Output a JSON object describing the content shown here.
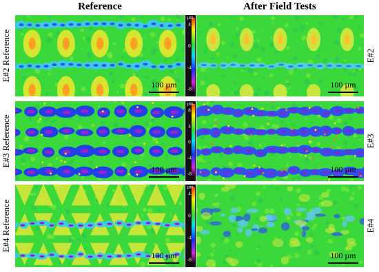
{
  "columns": [
    "Reference",
    "After Field Tests"
  ],
  "rows": [
    {
      "label": "E#2 Reference",
      "side_label": "E#2",
      "scale_bars": [
        "100 µm",
        "100 µm"
      ],
      "colorbar": {
        "unit": "µm",
        "ticks": [
          4,
          0,
          -4,
          -8
        ]
      }
    },
    {
      "label": "E#3 Reference",
      "side_label": "E#3",
      "scale_bars": [
        "100 µm",
        "100 µm"
      ],
      "colorbar": {
        "unit": "µm",
        "ticks": [
          8,
          4,
          0,
          -4,
          -8
        ]
      }
    },
    {
      "label": "E#4 Reference",
      "side_label": "E#4",
      "scale_bars": [
        "100 µm",
        "100 µm"
      ],
      "colorbar": {
        "unit": "µm",
        "ticks": [
          4,
          0,
          -4,
          -8
        ]
      }
    }
  ]
}
